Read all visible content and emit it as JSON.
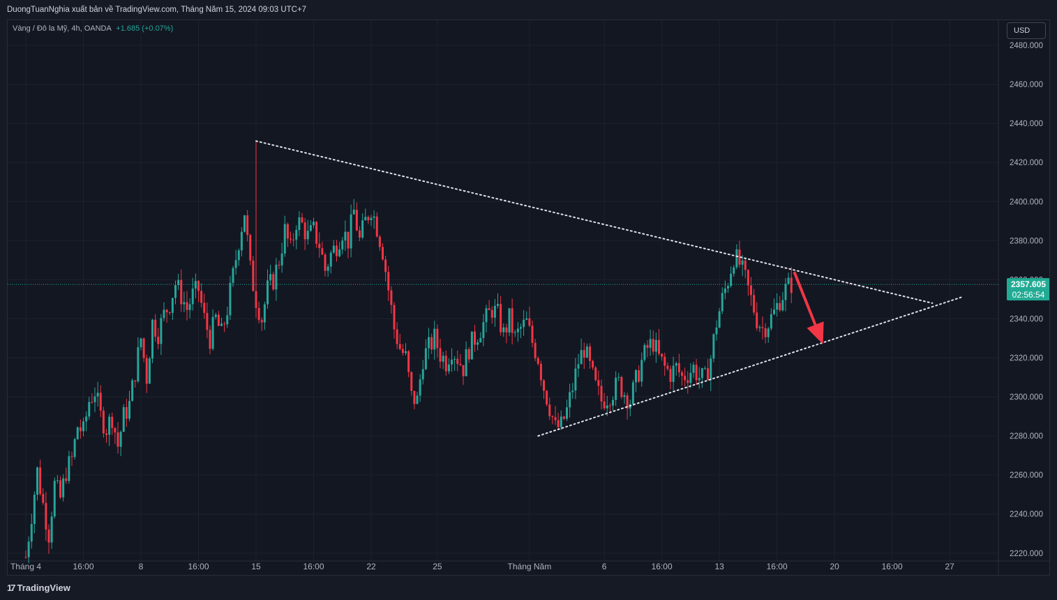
{
  "header": {
    "publish_text": "DuongTuanNghia xuất bản về TradingView.com, Tháng Năm 15, 2024 09:03 UTC+7"
  },
  "symbol": {
    "name": "Vàng / Đô la Mỹ, 4h, OANDA",
    "change": "+1.685 (+0.07%)"
  },
  "currency_button": {
    "label": "USD"
  },
  "footer": {
    "brand": "TradingView",
    "logo_glyph": "17"
  },
  "colors": {
    "up": "#26a69a",
    "down": "#f23645",
    "background": "#131722",
    "grid": "#1e222d",
    "price_line": "#22ab94"
  },
  "chart_data": {
    "type": "candlestick",
    "timeframe": "4h",
    "ylim": [
      2216,
      2490
    ],
    "y_ticks": [
      2220,
      2240,
      2260,
      2280,
      2300,
      2320,
      2340,
      2360,
      2380,
      2400,
      2420,
      2440,
      2460,
      2480
    ],
    "x_ticks": [
      {
        "label": "Tháng 4",
        "bar": 0
      },
      {
        "label": "16:00",
        "bar": 20
      },
      {
        "label": "8",
        "bar": 40
      },
      {
        "label": "16:00",
        "bar": 60
      },
      {
        "label": "15",
        "bar": 80
      },
      {
        "label": "16:00",
        "bar": 100
      },
      {
        "label": "22",
        "bar": 120
      },
      {
        "label": "25",
        "bar": 143
      },
      {
        "label": "Tháng Năm",
        "bar": 175
      },
      {
        "label": "6",
        "bar": 201
      },
      {
        "label": "16:00",
        "bar": 221
      },
      {
        "label": "13",
        "bar": 241
      },
      {
        "label": "16:00",
        "bar": 261
      },
      {
        "label": "20",
        "bar": 281
      },
      {
        "label": "16:00",
        "bar": 301
      },
      {
        "label": "27",
        "bar": 321
      }
    ],
    "ohlc_points": [
      [
        0,
        2218
      ],
      [
        2,
        2240
      ],
      [
        4,
        2262
      ],
      [
        6,
        2245
      ],
      [
        8,
        2230
      ],
      [
        10,
        2255
      ],
      [
        12,
        2248
      ],
      [
        14,
        2262
      ],
      [
        16,
        2268
      ],
      [
        18,
        2285
      ],
      [
        20,
        2282
      ],
      [
        22,
        2298
      ],
      [
        24,
        2303
      ],
      [
        26,
        2290
      ],
      [
        28,
        2284
      ],
      [
        30,
        2290
      ],
      [
        32,
        2275
      ],
      [
        34,
        2290
      ],
      [
        36,
        2296
      ],
      [
        38,
        2313
      ],
      [
        40,
        2330
      ],
      [
        42,
        2310
      ],
      [
        44,
        2338
      ],
      [
        46,
        2333
      ],
      [
        48,
        2342
      ],
      [
        50,
        2348
      ],
      [
        52,
        2358
      ],
      [
        54,
        2352
      ],
      [
        56,
        2345
      ],
      [
        58,
        2352
      ],
      [
        60,
        2355
      ],
      [
        62,
        2340
      ],
      [
        64,
        2330
      ],
      [
        66,
        2340
      ],
      [
        68,
        2332
      ],
      [
        70,
        2345
      ],
      [
        72,
        2362
      ],
      [
        74,
        2380
      ],
      [
        76,
        2395
      ],
      [
        78,
        2365
      ],
      [
        80,
        2350
      ],
      [
        82,
        2340
      ],
      [
        84,
        2355
      ],
      [
        86,
        2360
      ],
      [
        88,
        2370
      ],
      [
        90,
        2385
      ],
      [
        92,
        2375
      ],
      [
        94,
        2390
      ],
      [
        96,
        2388
      ],
      [
        98,
        2382
      ],
      [
        100,
        2385
      ],
      [
        102,
        2378
      ],
      [
        104,
        2365
      ],
      [
        106,
        2373
      ],
      [
        108,
        2378
      ],
      [
        110,
        2385
      ],
      [
        112,
        2380
      ],
      [
        114,
        2395
      ],
      [
        116,
        2380
      ],
      [
        118,
        2390
      ],
      [
        120,
        2397
      ],
      [
        122,
        2387
      ],
      [
        124,
        2375
      ],
      [
        126,
        2355
      ],
      [
        128,
        2335
      ],
      [
        130,
        2325
      ],
      [
        132,
        2320
      ],
      [
        134,
        2300
      ],
      [
        136,
        2298
      ],
      [
        138,
        2320
      ],
      [
        140,
        2325
      ],
      [
        142,
        2330
      ],
      [
        144,
        2322
      ],
      [
        146,
        2318
      ],
      [
        148,
        2325
      ],
      [
        150,
        2320
      ],
      [
        152,
        2315
      ],
      [
        154,
        2325
      ],
      [
        156,
        2330
      ],
      [
        158,
        2335
      ],
      [
        160,
        2340
      ],
      [
        162,
        2345
      ],
      [
        164,
        2342
      ],
      [
        166,
        2332
      ],
      [
        168,
        2340
      ],
      [
        170,
        2330
      ],
      [
        172,
        2335
      ],
      [
        174,
        2338
      ],
      [
        176,
        2328
      ],
      [
        178,
        2320
      ],
      [
        180,
        2305
      ],
      [
        182,
        2295
      ],
      [
        184,
        2284
      ],
      [
        186,
        2285
      ],
      [
        188,
        2293
      ],
      [
        190,
        2305
      ],
      [
        192,
        2318
      ],
      [
        194,
        2325
      ],
      [
        196,
        2315
      ],
      [
        198,
        2305
      ],
      [
        200,
        2298
      ],
      [
        202,
        2300
      ],
      [
        204,
        2303
      ],
      [
        206,
        2307
      ],
      [
        208,
        2302
      ],
      [
        210,
        2298
      ],
      [
        212,
        2308
      ],
      [
        214,
        2318
      ],
      [
        216,
        2325
      ],
      [
        218,
        2328
      ],
      [
        220,
        2320
      ],
      [
        222,
        2315
      ],
      [
        224,
        2312
      ],
      [
        226,
        2315
      ],
      [
        228,
        2310
      ],
      [
        230,
        2312
      ],
      [
        232,
        2315
      ],
      [
        234,
        2310
      ],
      [
        236,
        2309
      ],
      [
        238,
        2320
      ],
      [
        240,
        2338
      ],
      [
        242,
        2350
      ],
      [
        244,
        2360
      ],
      [
        246,
        2372
      ],
      [
        248,
        2368
      ],
      [
        250,
        2360
      ],
      [
        252,
        2350
      ],
      [
        254,
        2340
      ],
      [
        256,
        2335
      ],
      [
        258,
        2338
      ],
      [
        260,
        2343
      ],
      [
        262,
        2350
      ],
      [
        264,
        2355
      ],
      [
        266,
        2358
      ]
    ],
    "high_anchor": {
      "bar": 80,
      "value": 2431
    },
    "annotations": {
      "upper_trendline": {
        "from": {
          "bar": 80,
          "value": 2431
        },
        "to": {
          "bar": 315,
          "value": 2348
        },
        "style": "dotted"
      },
      "lower_trendline": {
        "from": {
          "bar": 178,
          "value": 2280
        },
        "to": {
          "bar": 325,
          "value": 2351
        },
        "style": "dotted"
      },
      "arrow": {
        "from": {
          "bar": 267,
          "value": 2364
        },
        "to": {
          "bar": 277,
          "value": 2327
        },
        "color": "#f23645"
      }
    },
    "current_price": {
      "value": 2357.605,
      "label": "2357.605",
      "countdown": "02:56:54"
    }
  }
}
